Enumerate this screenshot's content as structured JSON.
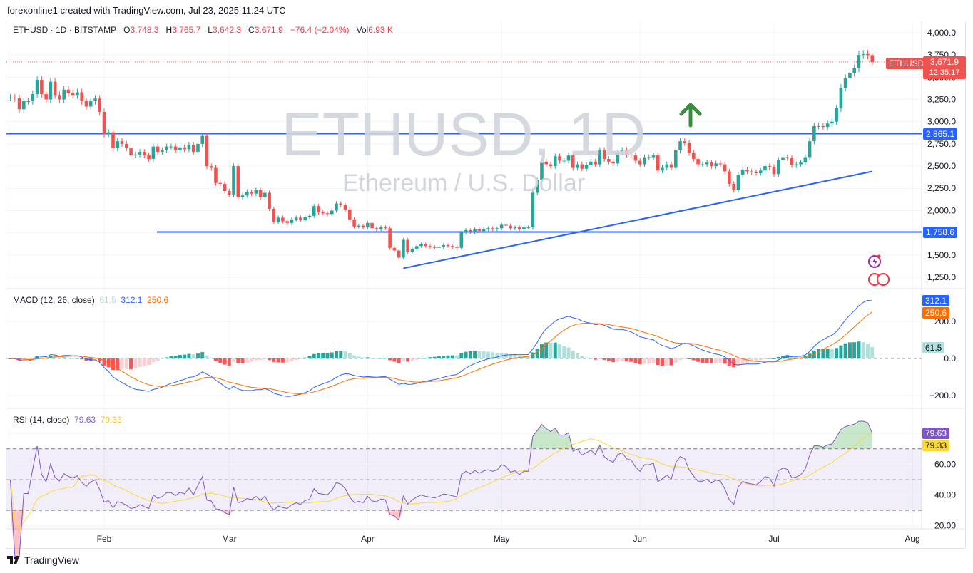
{
  "credit": "forexonline1 created with TradingView.com, Jul 23, 2025 11:24 UTC",
  "legend": {
    "symbol": "ETHUSD · 1D · BITSTAMP",
    "o_label": "O",
    "o": "3,748.3",
    "h_label": "H",
    "h": "3,765.7",
    "l_label": "L",
    "l": "3,642.3",
    "c_label": "C",
    "c": "3,671.9",
    "change": "−76.4 (−2.04%)",
    "vol_label": "Vol",
    "vol": "6.93 K"
  },
  "watermark": {
    "line1": "ETHUSD, 1D",
    "line2": "Ethereum / U.S. Dollar"
  },
  "price_axis": {
    "ticks": [
      "4,000.0",
      "3,750.0",
      "3,500.0",
      "3,250.0",
      "3,000.0",
      "2,750.0",
      "2,500.0",
      "2,250.0",
      "2,000.0",
      "1,750.0",
      "1,500.0",
      "1,250.0"
    ],
    "tick_values": [
      4000,
      3750,
      3500,
      3250,
      3000,
      2750,
      2500,
      2250,
      2000,
      1750,
      1500,
      1250
    ],
    "symbol_tag": "ETHUSD",
    "last_price": "3,671.9",
    "countdown": "12:35:17",
    "level_labels": [
      "2,865.1",
      "1,758.6"
    ]
  },
  "time_axis": {
    "labels": [
      "Feb",
      "Mar",
      "Apr",
      "May",
      "Jun",
      "Jul",
      "Aug"
    ]
  },
  "macd": {
    "legend_title": "MACD (12, 26, close)",
    "hist_value": "61.5",
    "macd_value": "312.1",
    "signal_value": "250.6",
    "ticks": [
      "200.0",
      "0.0",
      "−200.0"
    ],
    "tick_values": [
      200,
      0,
      -200
    ],
    "params": {
      "fast": 12,
      "slow": 26,
      "signal": 9
    }
  },
  "rsi": {
    "legend_title": "RSI (14, close)",
    "rsi_value": "79.63",
    "ma_value": "79.33",
    "ticks": [
      "60.00",
      "40.00",
      "20.00"
    ],
    "tick_values": [
      60,
      40,
      20
    ],
    "params": {
      "length": 14,
      "ma_length": 14
    },
    "upper_band": 70,
    "middle_band": 50,
    "lower_band": 30
  },
  "branding": "TradingView",
  "colors": {
    "up": "#26a69a",
    "down": "#ef5350",
    "level_line": "#2962ff",
    "macd_line": "#2962ff",
    "signal_line": "#ff6d00",
    "rsi_line": "#7e57c2",
    "rsi_ma": "#fdd835",
    "arrow": "#388e3c"
  },
  "chart_data": {
    "type": "candlestick",
    "symbol": "ETHUSD",
    "interval": "1D",
    "first_date": "2025-01-11",
    "last_date": "2025-07-23",
    "ylim": [
      1150,
      4080
    ],
    "last_bar": {
      "open": 3748.3,
      "high": 3765.7,
      "low": 3642.3,
      "close": 3671.9
    },
    "closes": [
      3270,
      3265,
      3140,
      3230,
      3230,
      3310,
      3470,
      3310,
      3250,
      3450,
      3300,
      3250,
      3360,
      3320,
      3300,
      3330,
      3230,
      3170,
      3230,
      3260,
      3110,
      2860,
      2880,
      2700,
      2780,
      2750,
      2700,
      2620,
      2630,
      2660,
      2620,
      2580,
      2720,
      2660,
      2680,
      2720,
      2720,
      2680,
      2710,
      2690,
      2740,
      2660,
      2750,
      2840,
      2500,
      2480,
      2310,
      2300,
      2220,
      2180,
      2500,
      2150,
      2170,
      2210,
      2190,
      2230,
      2150,
      2200,
      2020,
      1870,
      1920,
      1880,
      1860,
      1900,
      1920,
      1890,
      1930,
      1940,
      2050,
      1980,
      1970,
      1960,
      2000,
      2080,
      2060,
      2010,
      1900,
      1820,
      1830,
      1810,
      1860,
      1800,
      1790,
      1810,
      1800,
      1580,
      1550,
      1470,
      1670,
      1530,
      1570,
      1600,
      1620,
      1600,
      1590,
      1580,
      1590,
      1610,
      1600,
      1590,
      1580,
      1750,
      1780,
      1760,
      1790,
      1770,
      1790,
      1800,
      1790,
      1800,
      1840,
      1830,
      1800,
      1810,
      1790,
      1810,
      1810,
      2200,
      2340,
      2550,
      2520,
      2500,
      2610,
      2560,
      2560,
      2620,
      2480,
      2520,
      2470,
      2510,
      2550,
      2520,
      2680,
      2580,
      2550,
      2530,
      2650,
      2680,
      2630,
      2620,
      2560,
      2520,
      2600,
      2600,
      2620,
      2450,
      2480,
      2520,
      2480,
      2680,
      2780,
      2760,
      2650,
      2580,
      2520,
      2520,
      2540,
      2500,
      2530,
      2520,
      2440,
      2300,
      2230,
      2400,
      2460,
      2440,
      2430,
      2420,
      2450,
      2500,
      2490,
      2410,
      2570,
      2600,
      2590,
      2510,
      2520,
      2540,
      2600,
      2780,
      2950,
      2950,
      2940,
      2980,
      3000,
      3150,
      3380,
      3490,
      3550,
      3600,
      3750,
      3760,
      3748.3,
      3671.9
    ],
    "horizontal_levels": [
      2865.1,
      1758.6
    ],
    "trendline": {
      "from": {
        "date": "2025-04-09",
        "price": 1350
      },
      "to": {
        "date": "2025-07-23",
        "price": 2440
      }
    },
    "annotation": "up-arrow"
  }
}
